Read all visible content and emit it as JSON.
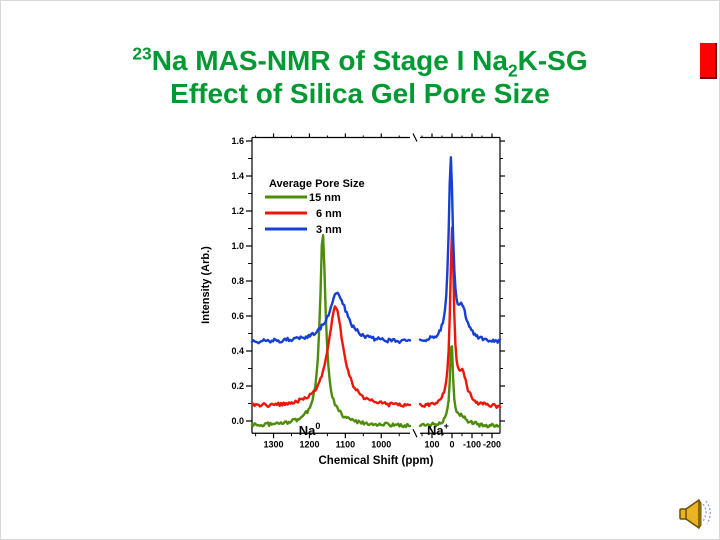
{
  "slide": {
    "title_line1_sup": "23",
    "title_line1_part1": "Na MAS-NMR of Stage I Na",
    "title_line1_sub": "2",
    "title_line1_part2": "K-SG",
    "title_line2": "Effect of Silica Gel Pore Size",
    "title_color": "#009933"
  },
  "chart_data": {
    "type": "line",
    "title": "",
    "xlabel": "Chemical Shift (ppm)",
    "ylabel": "Intensity (Arb.)",
    "ylim": [
      -0.07,
      1.62
    ],
    "yticks": [
      0.0,
      0.2,
      0.4,
      0.6,
      0.8,
      1.0,
      1.2,
      1.4,
      1.6
    ],
    "grid": false,
    "x_axis": {
      "broken": true,
      "left_segment": {
        "range_ppm": [
          1360,
          920
        ],
        "ticks": [
          1300,
          1200,
          1100,
          1000
        ],
        "minor_step_ppm": 50
      },
      "right_segment": {
        "range_ppm": [
          160,
          -240
        ],
        "ticks": [
          100,
          0,
          -100,
          -200
        ],
        "minor_step_ppm": 50
      }
    },
    "legend": {
      "title": "Average Pore Size",
      "position": "upper-left",
      "entries": [
        {
          "label": "15 nm",
          "color": "#4e8c0c"
        },
        {
          "label": "6 nm",
          "color": "#ee1509"
        },
        {
          "label": "3 nm",
          "color": "#1640d4"
        }
      ]
    },
    "annotations": [
      {
        "text": "Na",
        "sup": "0",
        "panel": "left",
        "ppm": 1230,
        "y": -0.045
      },
      {
        "text": "Na",
        "sup": "+",
        "panel": "right",
        "ppm": 125,
        "y": -0.045
      }
    ],
    "noise_amplitude": 0.01,
    "series": [
      {
        "name": "15 nm",
        "color": "#4e8c0c",
        "baseline_offset": -0.03,
        "peaks_left": [
          {
            "center_ppm": 1163,
            "amplitude": 1.02,
            "hwhm_ppm": 9
          },
          {
            "center_ppm": 1160,
            "amplitude": 0.09,
            "hwhm_ppm": 45
          }
        ],
        "peaks_right": [
          {
            "center_ppm": 3,
            "amplitude": 0.47,
            "hwhm_ppm": 9
          },
          {
            "center_ppm": -45,
            "amplitude": 0.05,
            "hwhm_ppm": 40
          }
        ]
      },
      {
        "name": "6 nm",
        "color": "#ee1509",
        "baseline_offset": 0.08,
        "peaks_left": [
          {
            "center_ppm": 1127,
            "amplitude": 0.57,
            "hwhm_ppm": 26
          }
        ],
        "peaks_right": [
          {
            "center_ppm": 0,
            "amplitude": 0.99,
            "hwhm_ppm": 11
          },
          {
            "center_ppm": -52,
            "amplitude": 0.17,
            "hwhm_ppm": 28
          }
        ]
      },
      {
        "name": "3 nm",
        "color": "#1640d4",
        "baseline_offset": 0.45,
        "peaks_left": [
          {
            "center_ppm": 1122,
            "amplitude": 0.28,
            "hwhm_ppm": 30
          }
        ],
        "peaks_right": [
          {
            "center_ppm": 6,
            "amplitude": 1.02,
            "hwhm_ppm": 13
          },
          {
            "center_ppm": -52,
            "amplitude": 0.16,
            "hwhm_ppm": 30
          }
        ]
      }
    ]
  },
  "decor": {
    "red_bar_color": "#fe0000",
    "red_bar_edge": "#7a0000",
    "speaker_gold": "#e8b422",
    "speaker_outline": "#6b4e00",
    "speaker_wave": "#8fa8c8"
  }
}
